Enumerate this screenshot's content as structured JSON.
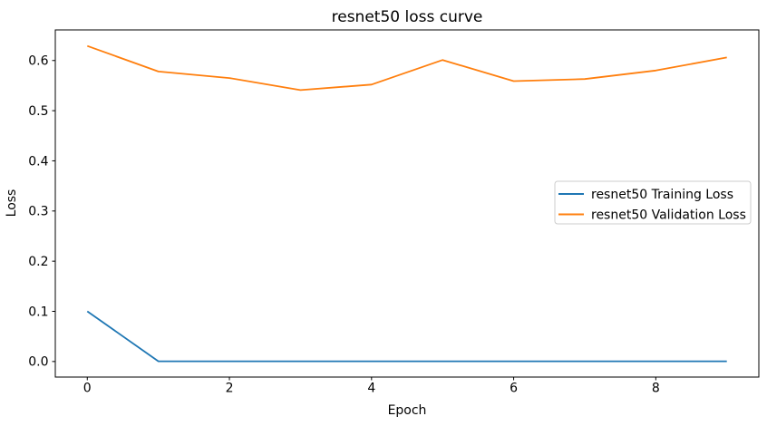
{
  "figure": {
    "background": "#ffffff"
  },
  "chart_data": {
    "type": "line",
    "title": "resnet50 loss curve",
    "xlabel": "Epoch",
    "ylabel": "Loss",
    "x": [
      0,
      1,
      2,
      3,
      4,
      5,
      6,
      7,
      8,
      9
    ],
    "series": [
      {
        "name": "resnet50 Training Loss",
        "color": "#1f77b4",
        "values": [
          0.1,
          0.0005,
          0.0005,
          0.0005,
          0.0005,
          0.0005,
          0.0005,
          0.0005,
          0.0005,
          0.0005
        ]
      },
      {
        "name": "resnet50 Validation Loss",
        "color": "#ff7f0e",
        "values": [
          0.629,
          0.578,
          0.565,
          0.541,
          0.552,
          0.601,
          0.559,
          0.563,
          0.58,
          0.606
        ]
      }
    ],
    "xlim": [
      -0.45,
      9.45
    ],
    "ylim": [
      -0.031,
      0.661
    ],
    "xticks": [
      0,
      2,
      4,
      6,
      8
    ],
    "xtick_labels": [
      "0",
      "2",
      "4",
      "6",
      "8"
    ],
    "yticks": [
      0.0,
      0.1,
      0.2,
      0.3,
      0.4,
      0.5,
      0.6
    ],
    "ytick_labels": [
      "0.0",
      "0.1",
      "0.2",
      "0.3",
      "0.4",
      "0.5",
      "0.6"
    ],
    "grid": false,
    "legend_position": "center right",
    "legend_style": {
      "border_color": "#cccccc",
      "background": "#ffffff"
    },
    "axis_color": "#000000",
    "text_color": "#000000"
  }
}
